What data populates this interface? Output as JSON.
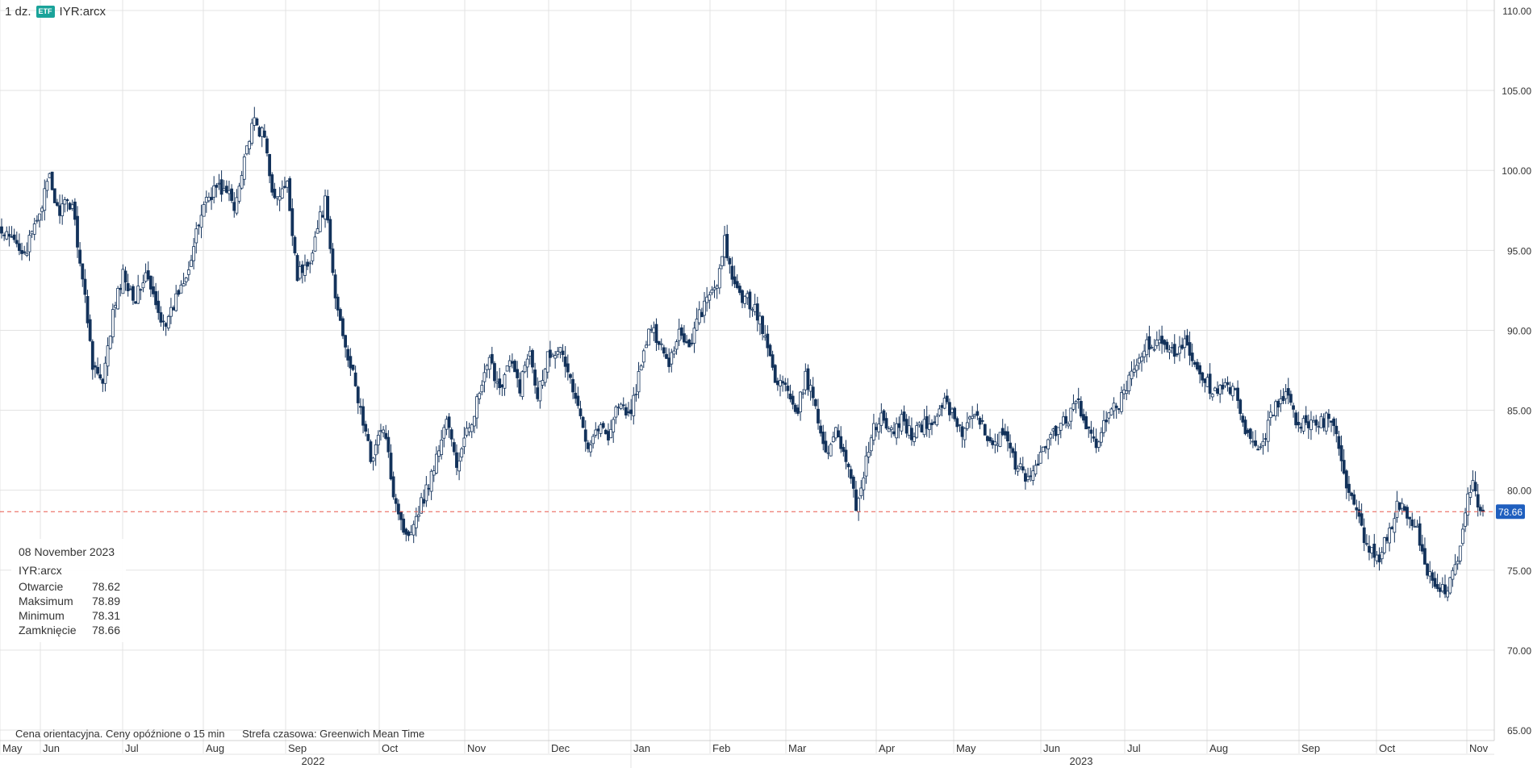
{
  "header": {
    "interval": "1 dz.",
    "badge": "ETF",
    "symbol": "IYR:arcx"
  },
  "tooltip": {
    "date": "08 November 2023",
    "symbol": "IYR:arcx",
    "rows": [
      {
        "label": "Otwarcie",
        "value": "78.62"
      },
      {
        "label": "Maksimum",
        "value": "78.89"
      },
      {
        "label": "Minimum",
        "value": "78.31"
      },
      {
        "label": "Zamknięcie",
        "value": "78.66"
      }
    ]
  },
  "footer": {
    "note": "Cena orientacyjna. Ceny opóźnione o 15 min",
    "timezone": "Strefa czasowa: Greenwich Mean Time"
  },
  "colors": {
    "up": "#ffffff",
    "down": "#13325b",
    "price_line": "#e8584f",
    "price_label": "#1f5fbf",
    "grid": "#e3e3e3"
  },
  "chart_data": {
    "type": "candlestick",
    "ylim": [
      65,
      110
    ],
    "y_ticks": [
      "65.00",
      "70.00",
      "75.00",
      "80.00",
      "85.00",
      "90.00",
      "95.00",
      "100.00",
      "105.00",
      "110.00"
    ],
    "current_price": "78.66",
    "months": [
      "May",
      "Jun",
      "Jul",
      "Aug",
      "Sep",
      "Oct",
      "Nov",
      "Dec",
      "Jan",
      "Feb",
      "Mar",
      "Apr",
      "May",
      "Jun",
      "Jul",
      "Aug",
      "Sep",
      "Oct",
      "Nov"
    ],
    "years": [
      "2022",
      "2023"
    ],
    "path": [
      [
        0,
        96.0
      ],
      [
        10,
        95.0
      ],
      [
        19,
        99.5
      ],
      [
        22,
        97.5
      ],
      [
        28,
        98.0
      ],
      [
        33,
        92.0
      ],
      [
        36,
        88.0
      ],
      [
        40,
        86.5
      ],
      [
        44,
        91.0
      ],
      [
        48,
        93.5
      ],
      [
        53,
        92.0
      ],
      [
        57,
        93.5
      ],
      [
        62,
        91.0
      ],
      [
        66,
        90.5
      ],
      [
        70,
        92.5
      ],
      [
        75,
        94.5
      ],
      [
        80,
        98.0
      ],
      [
        85,
        99.0
      ],
      [
        90,
        98.5
      ],
      [
        92,
        97.5
      ],
      [
        96,
        101.0
      ],
      [
        100,
        103.0
      ],
      [
        104,
        102.0
      ],
      [
        108,
        98.0
      ],
      [
        113,
        99.0
      ],
      [
        117,
        93.5
      ],
      [
        121,
        94.0
      ],
      [
        126,
        97.0
      ],
      [
        128,
        98.0
      ],
      [
        132,
        92.0
      ],
      [
        137,
        88.5
      ],
      [
        142,
        85.0
      ],
      [
        146,
        82.0
      ],
      [
        151,
        84.0
      ],
      [
        155,
        80.0
      ],
      [
        160,
        77.0
      ],
      [
        164,
        78.5
      ],
      [
        168,
        80.0
      ],
      [
        172,
        82.0
      ],
      [
        176,
        84.5
      ],
      [
        180,
        81.5
      ],
      [
        185,
        84.0
      ],
      [
        189,
        86.0
      ],
      [
        193,
        88.0
      ],
      [
        197,
        86.5
      ],
      [
        201,
        88.0
      ],
      [
        205,
        86.5
      ],
      [
        209,
        89.0
      ],
      [
        212,
        86.0
      ],
      [
        216,
        88.5
      ],
      [
        220,
        89.0
      ],
      [
        224,
        87.5
      ],
      [
        228,
        85.0
      ],
      [
        232,
        83.0
      ],
      [
        236,
        84.0
      ],
      [
        240,
        83.5
      ],
      [
        244,
        85.5
      ],
      [
        248,
        84.5
      ],
      [
        252,
        87.0
      ],
      [
        256,
        90.0
      ],
      [
        260,
        89.5
      ],
      [
        264,
        88.0
      ],
      [
        268,
        90.0
      ],
      [
        272,
        89.0
      ],
      [
        276,
        91.0
      ],
      [
        280,
        92.0
      ],
      [
        284,
        93.5
      ],
      [
        286,
        95.5
      ],
      [
        290,
        92.5
      ],
      [
        294,
        92.0
      ],
      [
        298,
        91.5
      ],
      [
        302,
        89.5
      ],
      [
        306,
        87.0
      ],
      [
        310,
        86.5
      ],
      [
        314,
        84.5
      ],
      [
        318,
        87.0
      ],
      [
        322,
        85.5
      ],
      [
        326,
        82.0
      ],
      [
        330,
        84.0
      ],
      [
        334,
        82.0
      ],
      [
        338,
        79.0
      ],
      [
        341,
        81.0
      ],
      [
        344,
        83.5
      ],
      [
        348,
        84.5
      ],
      [
        352,
        83.5
      ],
      [
        356,
        84.5
      ],
      [
        360,
        83.5
      ],
      [
        364,
        84.0
      ],
      [
        368,
        84.0
      ],
      [
        372,
        85.5
      ],
      [
        376,
        85.0
      ],
      [
        380,
        83.5
      ],
      [
        384,
        84.5
      ],
      [
        388,
        84.0
      ],
      [
        392,
        83.0
      ],
      [
        396,
        83.5
      ],
      [
        400,
        82.0
      ],
      [
        404,
        81.0
      ],
      [
        406,
        80.5
      ],
      [
        410,
        82.0
      ],
      [
        414,
        83.0
      ],
      [
        418,
        84.0
      ],
      [
        422,
        84.5
      ],
      [
        426,
        85.5
      ],
      [
        430,
        83.5
      ],
      [
        433,
        82.5
      ],
      [
        436,
        84.5
      ],
      [
        440,
        85.0
      ],
      [
        444,
        86.0
      ],
      [
        448,
        87.5
      ],
      [
        452,
        89.0
      ],
      [
        456,
        89.0
      ],
      [
        460,
        89.0
      ],
      [
        464,
        88.5
      ],
      [
        468,
        89.5
      ],
      [
        472,
        88.0
      ],
      [
        476,
        87.0
      ],
      [
        480,
        86.0
      ],
      [
        484,
        86.5
      ],
      [
        488,
        86.0
      ],
      [
        492,
        83.5
      ],
      [
        496,
        82.5
      ],
      [
        500,
        83.5
      ],
      [
        504,
        85.5
      ],
      [
        508,
        86.0
      ],
      [
        512,
        84.5
      ],
      [
        516,
        84.0
      ],
      [
        520,
        84.0
      ],
      [
        524,
        84.5
      ],
      [
        528,
        83.5
      ],
      [
        532,
        80.0
      ],
      [
        536,
        78.5
      ],
      [
        540,
        76.5
      ],
      [
        544,
        75.5
      ],
      [
        548,
        77.0
      ],
      [
        552,
        79.0
      ],
      [
        556,
        78.5
      ],
      [
        560,
        77.5
      ],
      [
        564,
        75.0
      ],
      [
        568,
        73.5
      ],
      [
        572,
        74.0
      ],
      [
        576,
        75.5
      ],
      [
        580,
        79.5
      ],
      [
        582,
        80.5
      ],
      [
        584,
        79.0
      ],
      [
        586,
        78.66
      ]
    ]
  }
}
